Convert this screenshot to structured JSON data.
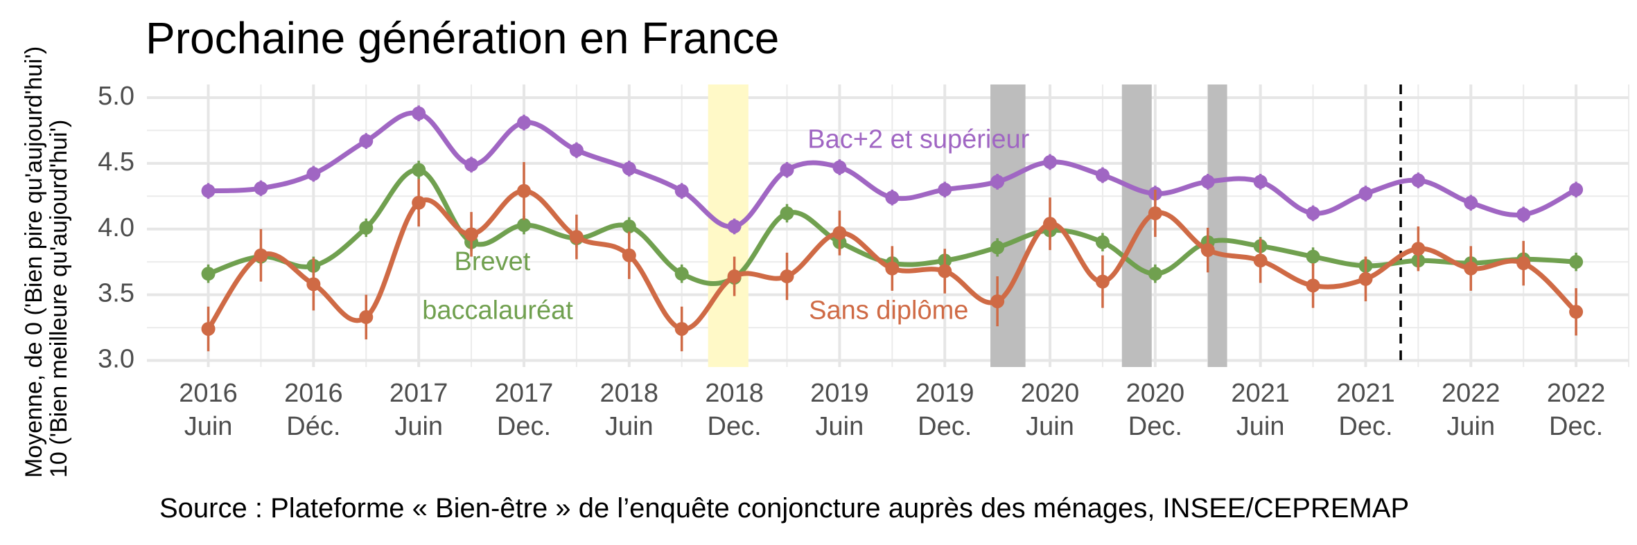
{
  "chart_data": {
    "type": "line",
    "title": "Prochaine génération en France",
    "ylabel_lines": [
      "Moyenne, de 0 ('Bien pire qu'aujourd'hui')",
      "10 ('Bien meilleure qu'aujourd'hui')"
    ],
    "source": "Source : Plateforme « Bien-être » de l’enquête conjoncture auprès des ménages, INSEE/CEPREMAP",
    "ylim": [
      2.95,
      5.1
    ],
    "yticks": [
      3.0,
      3.5,
      4.0,
      4.5,
      5.0
    ],
    "ytick_labels": [
      "3.0",
      "3.5",
      "4.0",
      "4.5",
      "5.0"
    ],
    "grid": true,
    "x_tick_labels": [
      [
        "2016",
        "Juin"
      ],
      [
        "2016",
        "Déc."
      ],
      [
        "2017",
        "Juin"
      ],
      [
        "2017",
        "Dec."
      ],
      [
        "2018",
        "Juin"
      ],
      [
        "2018",
        "Dec."
      ],
      [
        "2019",
        "Juin"
      ],
      [
        "2019",
        "Dec."
      ],
      [
        "2020",
        "Juin"
      ],
      [
        "2020",
        "Dec."
      ],
      [
        "2021",
        "Juin"
      ],
      [
        "2021",
        "Dec."
      ],
      [
        "2022",
        "Juin"
      ],
      [
        "2022",
        "Dec."
      ]
    ],
    "x_tick_positions": [
      0,
      6,
      12,
      18,
      24,
      30,
      36,
      42,
      48,
      54,
      60,
      66,
      72,
      78
    ],
    "xlim": [
      -3.5,
      81
    ],
    "shaded_periods": [
      {
        "start": 28.5,
        "end": 30.8,
        "color": "#fff9c7"
      },
      {
        "start": 44.6,
        "end": 46.6,
        "color": "#bdbdbd"
      },
      {
        "start": 52.1,
        "end": 53.8,
        "color": "#bdbdbd"
      },
      {
        "start": 57.0,
        "end": 58.1,
        "color": "#bdbdbd"
      }
    ],
    "vline": {
      "x": 68.0,
      "style": "dashed"
    },
    "series": [
      {
        "name": "Bac+2 et supérieur",
        "color": "#a066c3",
        "x": [
          0,
          3,
          6,
          9,
          12,
          15,
          18,
          21,
          24,
          27,
          30,
          33,
          36,
          39,
          42,
          45,
          48,
          51,
          54,
          57,
          60,
          63,
          66,
          69,
          72,
          75,
          78
        ],
        "y": [
          4.29,
          4.31,
          4.42,
          4.67,
          4.88,
          4.49,
          4.81,
          4.6,
          4.46,
          4.29,
          4.02,
          4.45,
          4.47,
          4.24,
          4.3,
          4.36,
          4.51,
          4.41,
          4.27,
          4.36,
          4.36,
          4.12,
          4.27,
          4.37,
          4.2,
          4.11,
          4.3
        ],
        "err": [
          0.06,
          0.06,
          0.06,
          0.06,
          0.06,
          0.06,
          0.06,
          0.06,
          0.06,
          0.06,
          0.06,
          0.06,
          0.06,
          0.06,
          0.06,
          0.06,
          0.06,
          0.06,
          0.06,
          0.06,
          0.06,
          0.06,
          0.06,
          0.06,
          0.06,
          0.06,
          0.06
        ]
      },
      {
        "name": "Brevet baccalauréat",
        "color": "#70a04f",
        "x": [
          0,
          3,
          6,
          9,
          12,
          15,
          18,
          21,
          24,
          27,
          30,
          33,
          36,
          39,
          42,
          45,
          48,
          51,
          54,
          57,
          60,
          63,
          66,
          69,
          72,
          75,
          78
        ],
        "y": [
          3.66,
          3.79,
          3.72,
          4.01,
          4.45,
          3.9,
          4.03,
          3.93,
          4.02,
          3.66,
          3.63,
          4.12,
          3.9,
          3.74,
          3.76,
          3.86,
          3.99,
          3.9,
          3.66,
          3.9,
          3.87,
          3.79,
          3.72,
          3.76,
          3.74,
          3.77,
          3.75
        ],
        "err": [
          0.07,
          0.07,
          0.07,
          0.07,
          0.07,
          0.07,
          0.07,
          0.07,
          0.07,
          0.07,
          0.07,
          0.07,
          0.07,
          0.07,
          0.07,
          0.07,
          0.07,
          0.07,
          0.07,
          0.07,
          0.07,
          0.07,
          0.07,
          0.07,
          0.07,
          0.07,
          0.07
        ]
      },
      {
        "name": "Sans diplôme",
        "color": "#cf6a45",
        "x": [
          0,
          3,
          6,
          9,
          12,
          15,
          18,
          21,
          24,
          27,
          30,
          33,
          36,
          39,
          42,
          45,
          48,
          51,
          54,
          57,
          60,
          63,
          66,
          69,
          72,
          75,
          78
        ],
        "y": [
          3.24,
          3.8,
          3.58,
          3.33,
          4.2,
          3.96,
          4.29,
          3.94,
          3.8,
          3.24,
          3.64,
          3.64,
          3.97,
          3.7,
          3.68,
          3.45,
          4.04,
          3.6,
          4.12,
          3.84,
          3.76,
          3.57,
          3.62,
          3.85,
          3.7,
          3.74,
          3.37
        ],
        "err": [
          0.17,
          0.2,
          0.2,
          0.17,
          0.18,
          0.17,
          0.22,
          0.17,
          0.18,
          0.17,
          0.15,
          0.18,
          0.17,
          0.17,
          0.17,
          0.19,
          0.2,
          0.2,
          0.18,
          0.17,
          0.17,
          0.17,
          0.17,
          0.17,
          0.17,
          0.17,
          0.18
        ]
      }
    ],
    "series_labels": [
      {
        "text": "Bac+2 et supérieur",
        "color": "#a066c3",
        "x": 40.5,
        "y": 4.67
      },
      {
        "text": "Brevet",
        "color": "#70a04f",
        "x": 16.2,
        "y": 3.74
      },
      {
        "text": "baccalauréat",
        "color": "#70a04f",
        "x": 16.5,
        "y": 3.37
      },
      {
        "text": "Sans diplôme",
        "color": "#cf6a45",
        "x": 38.8,
        "y": 3.37
      }
    ]
  }
}
